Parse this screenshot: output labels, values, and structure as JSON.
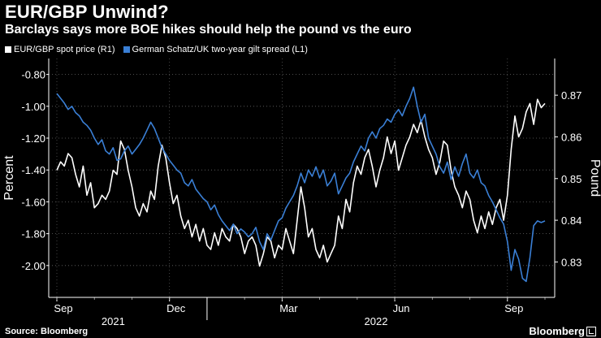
{
  "header": {
    "title": "EUR/GBP Unwind?",
    "subtitle": "Barclays says more BOE hikes should help the pound vs the euro"
  },
  "legend": {
    "items": [
      {
        "label": "EUR/GBP spot price (R1)",
        "color": "#ffffff"
      },
      {
        "label": "German Schatz/UK two-year gilt spread (L1)",
        "color": "#3a7fd5"
      }
    ]
  },
  "footer": {
    "source": "Source: Bloomberg",
    "brand": "Bloomberg"
  },
  "chart_data": {
    "type": "line",
    "xlabel": "",
    "x_ticks": [
      "Sep",
      "Dec",
      "Mar",
      "Jun",
      "Sep"
    ],
    "year_labels": [
      "2021",
      "2022"
    ],
    "left_axis": {
      "label": "Percent",
      "ylim": [
        -2.2,
        -0.7
      ],
      "ticks": [
        "-0.80",
        "-1.00",
        "-1.20",
        "-1.40",
        "-1.60",
        "-1.80",
        "-2.00"
      ]
    },
    "right_axis": {
      "label": "Pound",
      "ylim": [
        0.8215,
        0.8788
      ],
      "ticks": [
        "0.87",
        "0.86",
        "0.85",
        "0.84",
        "0.83"
      ]
    },
    "x_range": [
      0,
      13
    ],
    "series": [
      {
        "name": "EUR/GBP spot price (R1)",
        "axis": "right",
        "color": "#ffffff",
        "x": [
          0,
          0.1,
          0.2,
          0.3,
          0.4,
          0.5,
          0.6,
          0.7,
          0.8,
          0.9,
          1.0,
          1.1,
          1.2,
          1.3,
          1.4,
          1.5,
          1.6,
          1.7,
          1.8,
          1.9,
          2.0,
          2.1,
          2.2,
          2.3,
          2.4,
          2.5,
          2.6,
          2.7,
          2.8,
          2.9,
          3.0,
          3.1,
          3.2,
          3.3,
          3.4,
          3.5,
          3.6,
          3.7,
          3.8,
          3.9,
          4.0,
          4.1,
          4.2,
          4.3,
          4.4,
          4.5,
          4.6,
          4.7,
          4.8,
          4.9,
          5.0,
          5.1,
          5.2,
          5.3,
          5.4,
          5.5,
          5.6,
          5.7,
          5.8,
          5.9,
          6.0,
          6.1,
          6.2,
          6.3,
          6.4,
          6.5,
          6.6,
          6.7,
          6.8,
          6.9,
          7.0,
          7.1,
          7.2,
          7.3,
          7.4,
          7.5,
          7.6,
          7.7,
          7.8,
          7.9,
          8.0,
          8.1,
          8.2,
          8.3,
          8.4,
          8.5,
          8.6,
          8.7,
          8.8,
          8.9,
          9.0,
          9.1,
          9.2,
          9.3,
          9.4,
          9.5,
          9.6,
          9.7,
          9.8,
          9.9,
          10.0,
          10.1,
          10.2,
          10.3,
          10.4,
          10.5,
          10.6,
          10.7,
          10.8,
          10.9,
          11.0,
          11.1,
          11.2,
          11.3,
          11.4,
          11.5,
          11.6,
          11.7,
          11.8,
          11.9,
          12.0,
          12.1,
          12.2,
          12.3,
          12.4,
          12.5,
          12.6,
          12.7,
          12.8,
          12.9,
          13.0
        ],
        "values": [
          0.852,
          0.854,
          0.853,
          0.856,
          0.855,
          0.851,
          0.848,
          0.853,
          0.846,
          0.849,
          0.843,
          0.844,
          0.846,
          0.845,
          0.847,
          0.852,
          0.851,
          0.859,
          0.857,
          0.852,
          0.848,
          0.843,
          0.841,
          0.844,
          0.842,
          0.847,
          0.845,
          0.853,
          0.858,
          0.855,
          0.849,
          0.844,
          0.846,
          0.841,
          0.838,
          0.84,
          0.836,
          0.839,
          0.835,
          0.838,
          0.834,
          0.833,
          0.837,
          0.834,
          0.838,
          0.836,
          0.835,
          0.839,
          0.838,
          0.836,
          0.832,
          0.835,
          0.836,
          0.834,
          0.829,
          0.832,
          0.836,
          0.835,
          0.831,
          0.834,
          0.833,
          0.838,
          0.835,
          0.832,
          0.84,
          0.848,
          0.843,
          0.836,
          0.838,
          0.833,
          0.831,
          0.834,
          0.83,
          0.832,
          0.834,
          0.841,
          0.838,
          0.845,
          0.842,
          0.849,
          0.853,
          0.851,
          0.855,
          0.857,
          0.853,
          0.848,
          0.852,
          0.855,
          0.86,
          0.856,
          0.859,
          0.852,
          0.855,
          0.858,
          0.86,
          0.863,
          0.861,
          0.864,
          0.86,
          0.857,
          0.855,
          0.851,
          0.854,
          0.859,
          0.858,
          0.852,
          0.848,
          0.846,
          0.843,
          0.847,
          0.845,
          0.84,
          0.837,
          0.841,
          0.838,
          0.842,
          0.839,
          0.843,
          0.845,
          0.84,
          0.846,
          0.857,
          0.865,
          0.86,
          0.862,
          0.866,
          0.868,
          0.863,
          0.869,
          0.867,
          0.868
        ]
      },
      {
        "name": "German Schatz/UK two-year gilt spread (L1)",
        "axis": "left",
        "color": "#3a7fd5",
        "x": [
          0,
          0.1,
          0.2,
          0.3,
          0.4,
          0.5,
          0.6,
          0.7,
          0.8,
          0.9,
          1.0,
          1.1,
          1.2,
          1.3,
          1.4,
          1.5,
          1.6,
          1.7,
          1.8,
          1.9,
          2.0,
          2.1,
          2.2,
          2.3,
          2.4,
          2.5,
          2.6,
          2.7,
          2.8,
          2.9,
          3.0,
          3.1,
          3.2,
          3.3,
          3.4,
          3.5,
          3.6,
          3.7,
          3.8,
          3.9,
          4.0,
          4.1,
          4.2,
          4.3,
          4.4,
          4.5,
          4.6,
          4.7,
          4.8,
          4.9,
          5.0,
          5.1,
          5.2,
          5.3,
          5.4,
          5.5,
          5.6,
          5.7,
          5.8,
          5.9,
          6.0,
          6.1,
          6.2,
          6.3,
          6.4,
          6.5,
          6.6,
          6.7,
          6.8,
          6.9,
          7.0,
          7.1,
          7.2,
          7.3,
          7.4,
          7.5,
          7.6,
          7.7,
          7.8,
          7.9,
          8.0,
          8.1,
          8.2,
          8.3,
          8.4,
          8.5,
          8.6,
          8.7,
          8.8,
          8.9,
          9.0,
          9.1,
          9.2,
          9.3,
          9.4,
          9.5,
          9.6,
          9.7,
          9.8,
          9.9,
          10.0,
          10.1,
          10.2,
          10.3,
          10.4,
          10.5,
          10.6,
          10.7,
          10.8,
          10.9,
          11.0,
          11.1,
          11.2,
          11.3,
          11.4,
          11.5,
          11.6,
          11.7,
          11.8,
          11.9,
          12.0,
          12.1,
          12.2,
          12.3,
          12.4,
          12.5,
          12.6,
          12.7,
          12.8,
          12.9,
          13.0
        ],
        "values": [
          -0.92,
          -0.95,
          -0.98,
          -1.02,
          -1.0,
          -1.04,
          -1.06,
          -1.1,
          -1.12,
          -1.15,
          -1.2,
          -1.24,
          -1.21,
          -1.28,
          -1.3,
          -1.26,
          -1.34,
          -1.33,
          -1.28,
          -1.25,
          -1.3,
          -1.27,
          -1.24,
          -1.2,
          -1.15,
          -1.1,
          -1.14,
          -1.2,
          -1.26,
          -1.3,
          -1.34,
          -1.37,
          -1.4,
          -1.42,
          -1.48,
          -1.5,
          -1.46,
          -1.52,
          -1.55,
          -1.58,
          -1.6,
          -1.65,
          -1.62,
          -1.68,
          -1.72,
          -1.75,
          -1.78,
          -1.74,
          -1.8,
          -1.77,
          -1.79,
          -1.82,
          -1.8,
          -1.76,
          -1.85,
          -1.9,
          -1.8,
          -1.84,
          -1.78,
          -1.72,
          -1.7,
          -1.64,
          -1.6,
          -1.56,
          -1.5,
          -1.42,
          -1.48,
          -1.4,
          -1.44,
          -1.38,
          -1.45,
          -1.4,
          -1.5,
          -1.47,
          -1.42,
          -1.55,
          -1.5,
          -1.45,
          -1.42,
          -1.35,
          -1.3,
          -1.25,
          -1.28,
          -1.2,
          -1.16,
          -1.2,
          -1.14,
          -1.12,
          -1.08,
          -1.1,
          -1.05,
          -1.02,
          -1.06,
          -1.0,
          -0.95,
          -0.88,
          -1.0,
          -1.1,
          -1.05,
          -1.2,
          -1.25,
          -1.3,
          -1.38,
          -1.42,
          -1.35,
          -1.46,
          -1.38,
          -1.44,
          -1.36,
          -1.3,
          -1.42,
          -1.45,
          -1.4,
          -1.48,
          -1.5,
          -1.56,
          -1.6,
          -1.65,
          -1.7,
          -1.74,
          -1.85,
          -2.03,
          -1.9,
          -1.96,
          -2.08,
          -2.1,
          -1.95,
          -1.75,
          -1.72,
          -1.73,
          -1.72
        ]
      }
    ]
  }
}
